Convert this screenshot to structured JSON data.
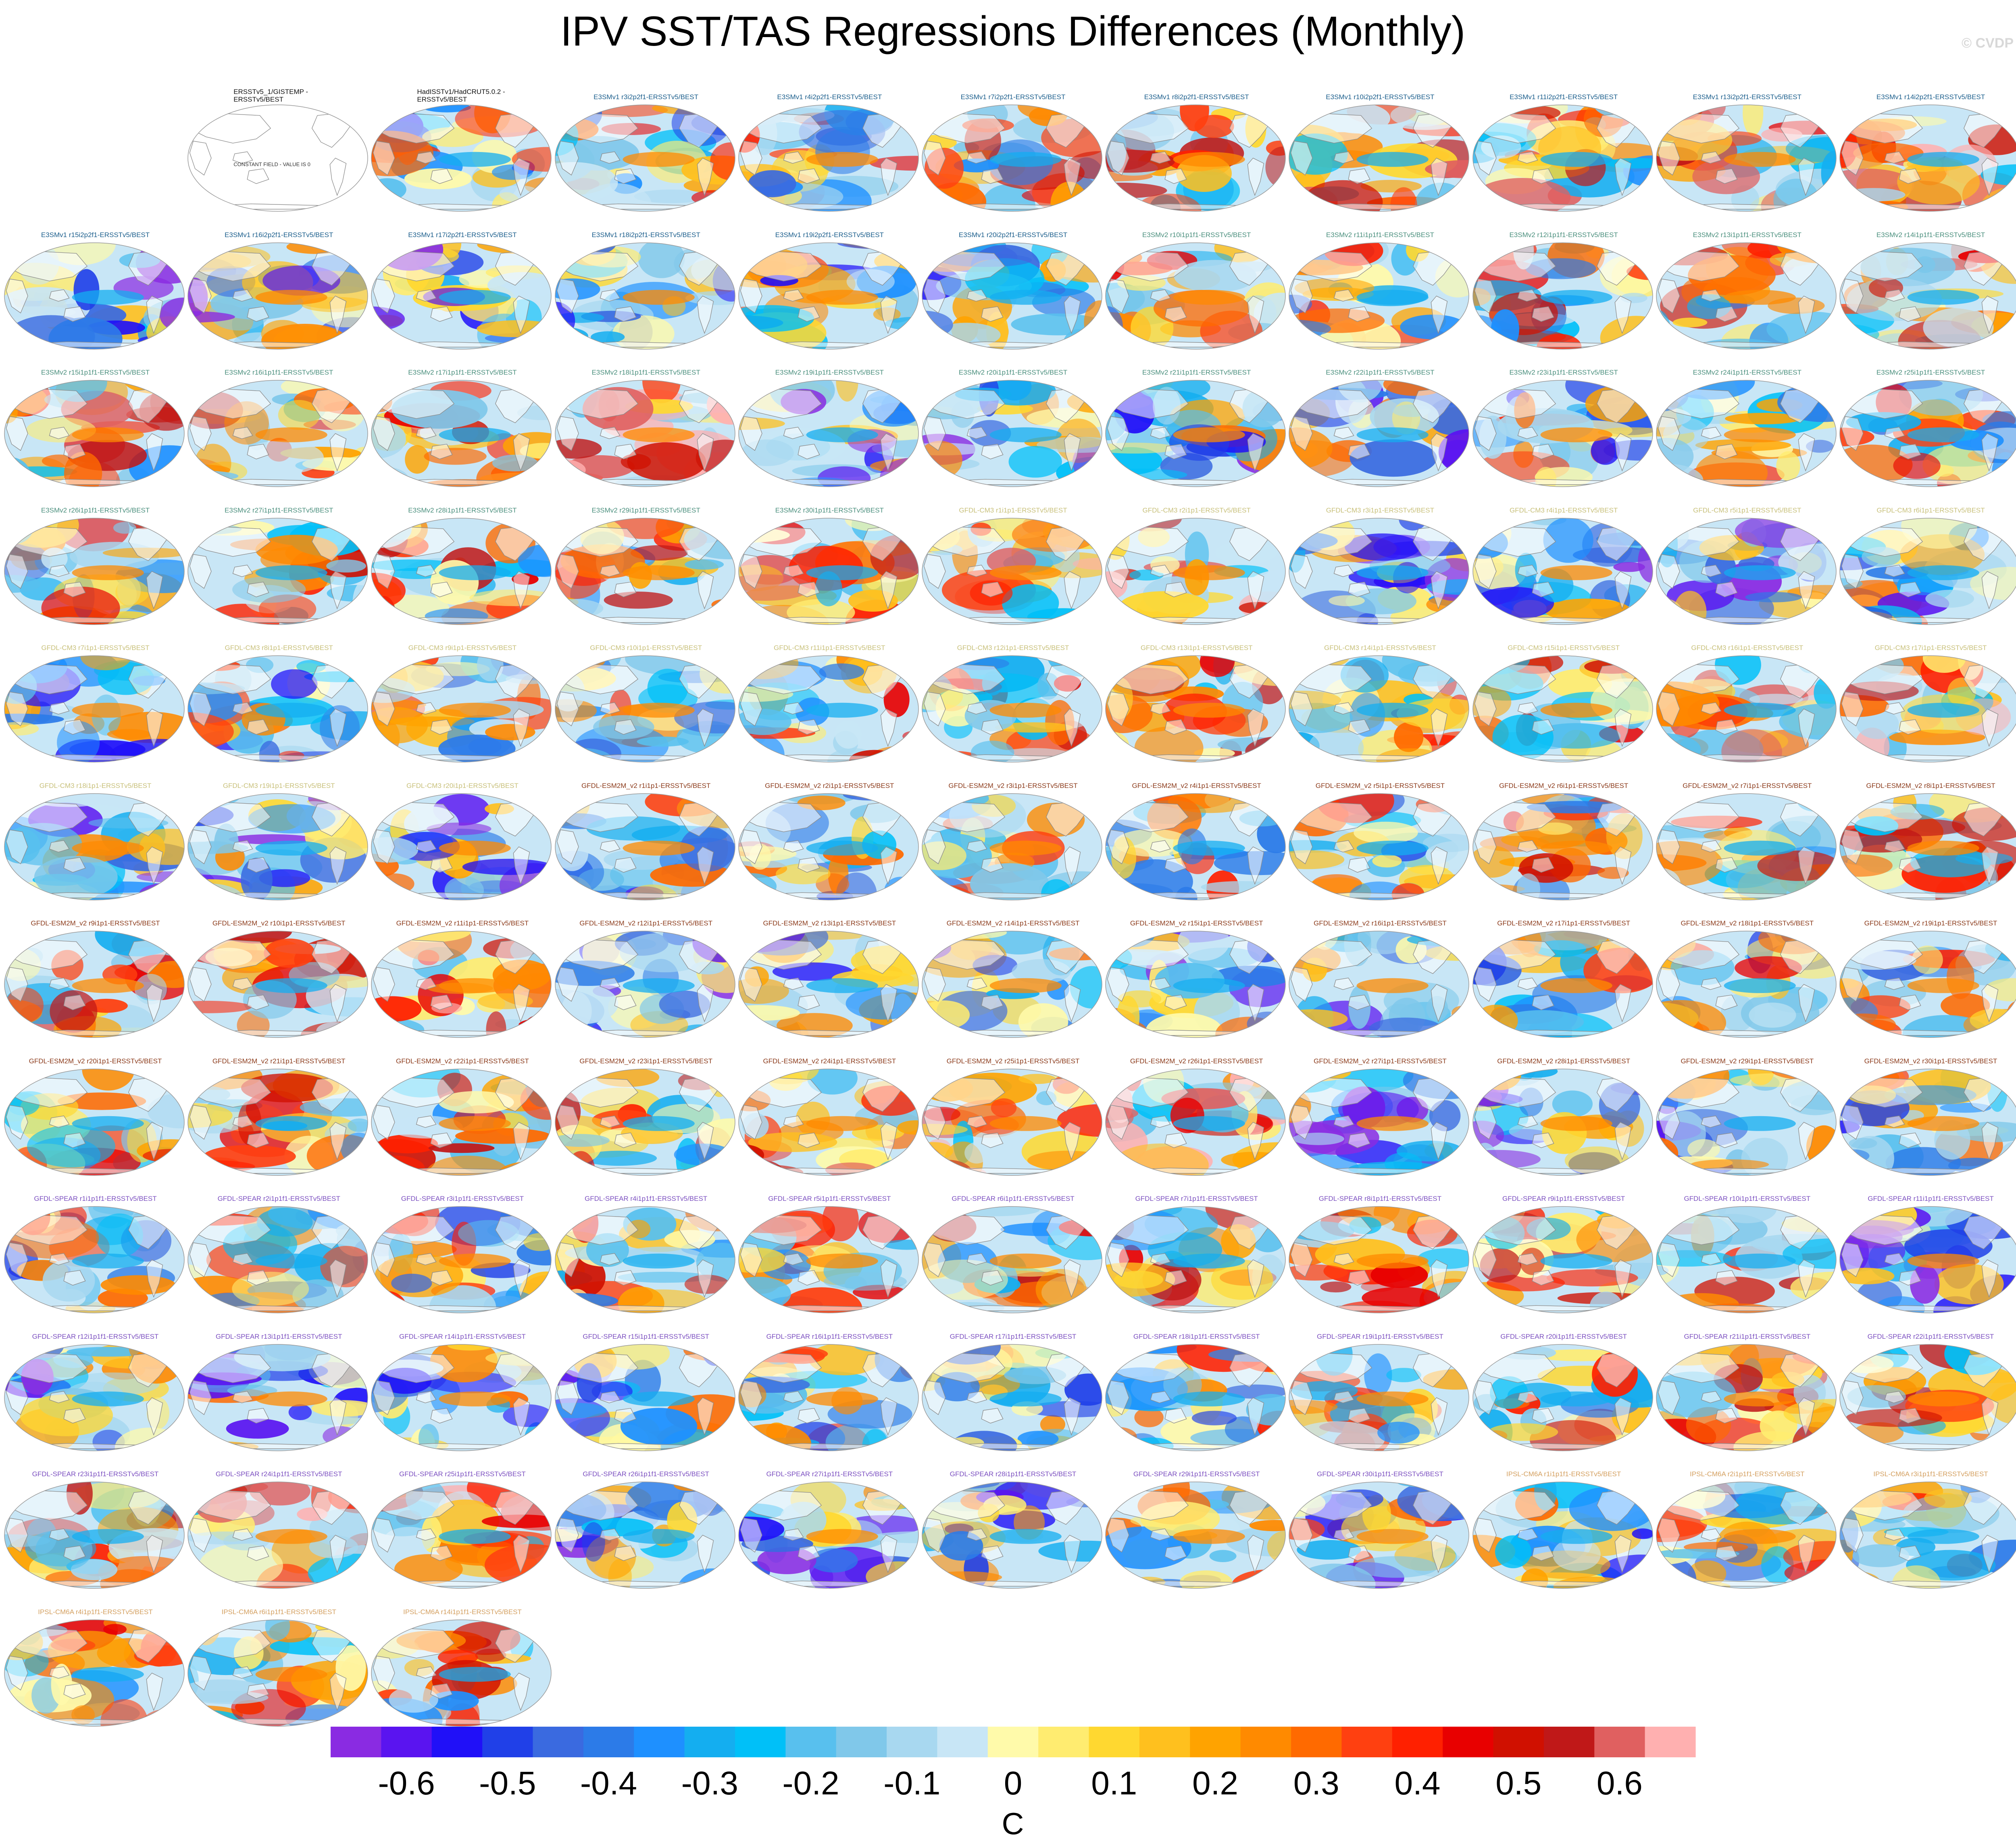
{
  "title": "IPV SST/TAS Regressions Differences (Monthly)",
  "watermark": "© CVDP",
  "colors": {
    "E3SMv1": "#1b5e8c",
    "E3SMv2": "#4a8f7d",
    "GFDL-CM3": "#c8c07a",
    "GFDL-ESM2M_v2": "#8b3a1a",
    "GFDL-SPEAR": "#7b4fc0",
    "IPSL-CM6A": "#d4a060",
    "obs": "#111111"
  },
  "chart_data": {
    "type": "map_panel_grid",
    "title": "IPV SST/TAS Regressions Differences (Monthly)",
    "projection": "robinson-global",
    "variable": "SST/TAS regression difference",
    "units": "C",
    "colorbar": {
      "label": "C",
      "tick_labels": [
        "-0.6",
        "-0.5",
        "-0.4",
        "-0.3",
        "-0.2",
        "-0.1",
        "0",
        "0.1",
        "0.2",
        "0.3",
        "0.4",
        "0.5",
        "0.6"
      ],
      "bins": [
        "#8a2be2",
        "#5a14f0",
        "#2010f8",
        "#2040e8",
        "#3a6ae0",
        "#2c7be8",
        "#1e90ff",
        "#14aef0",
        "#00c0f8",
        "#58c0ee",
        "#80c8ea",
        "#a8d8f0",
        "#c8e6f6",
        "#fffaaa",
        "#ffec70",
        "#ffd830",
        "#ffc01e",
        "#ffa300",
        "#ff8a00",
        "#ff6a00",
        "#ff4010",
        "#ff2000",
        "#e80000",
        "#d01000",
        "#c01818",
        "#e06060",
        "#ffb0b0"
      ]
    },
    "panels": [
      {
        "title": "",
        "group": "blank"
      },
      {
        "title": "ERSSTv5_1/GISTEMP -\nERSSTv5/BEST",
        "group": "obs",
        "constant": true,
        "constant_label": "CONSTANT FIELD - VALUE IS 0"
      },
      {
        "title": "HadISSTv1/HadCRUT5.0.2 -\nERSSTv5/BEST",
        "group": "obs"
      },
      {
        "title": "E3SMv1 r3i2p2f1-ERSSTv5/BEST",
        "group": "E3SMv1"
      },
      {
        "title": "E3SMv1 r4i2p2f1-ERSSTv5/BEST",
        "group": "E3SMv1"
      },
      {
        "title": "E3SMv1 r7i2p2f1-ERSSTv5/BEST",
        "group": "E3SMv1"
      },
      {
        "title": "E3SMv1 r8i2p2f1-ERSSTv5/BEST",
        "group": "E3SMv1"
      },
      {
        "title": "E3SMv1 r10i2p2f1-ERSSTv5/BEST",
        "group": "E3SMv1"
      },
      {
        "title": "E3SMv1 r11i2p2f1-ERSSTv5/BEST",
        "group": "E3SMv1"
      },
      {
        "title": "E3SMv1 r13i2p2f1-ERSSTv5/BEST",
        "group": "E3SMv1"
      },
      {
        "title": "E3SMv1 r14i2p2f1-ERSSTv5/BEST",
        "group": "E3SMv1"
      },
      {
        "title": "E3SMv1 r15i2p2f1-ERSSTv5/BEST",
        "group": "E3SMv1"
      },
      {
        "title": "E3SMv1 r16i2p2f1-ERSSTv5/BEST",
        "group": "E3SMv1"
      },
      {
        "title": "E3SMv1 r17i2p2f1-ERSSTv5/BEST",
        "group": "E3SMv1"
      },
      {
        "title": "E3SMv1 r18i2p2f1-ERSSTv5/BEST",
        "group": "E3SMv1"
      },
      {
        "title": "E3SMv1 r19i2p2f1-ERSSTv5/BEST",
        "group": "E3SMv1"
      },
      {
        "title": "E3SMv1 r20i2p2f1-ERSSTv5/BEST",
        "group": "E3SMv1"
      },
      {
        "title": "E3SMv2 r10i1p1f1-ERSSTv5/BEST",
        "group": "E3SMv2"
      },
      {
        "title": "E3SMv2 r11i1p1f1-ERSSTv5/BEST",
        "group": "E3SMv2"
      },
      {
        "title": "E3SMv2 r12i1p1f1-ERSSTv5/BEST",
        "group": "E3SMv2"
      },
      {
        "title": "E3SMv2 r13i1p1f1-ERSSTv5/BEST",
        "group": "E3SMv2"
      },
      {
        "title": "E3SMv2 r14i1p1f1-ERSSTv5/BEST",
        "group": "E3SMv2"
      },
      {
        "title": "E3SMv2 r15i1p1f1-ERSSTv5/BEST",
        "group": "E3SMv2"
      },
      {
        "title": "E3SMv2 r16i1p1f1-ERSSTv5/BEST",
        "group": "E3SMv2"
      },
      {
        "title": "E3SMv2 r17i1p1f1-ERSSTv5/BEST",
        "group": "E3SMv2"
      },
      {
        "title": "E3SMv2 r18i1p1f1-ERSSTv5/BEST",
        "group": "E3SMv2"
      },
      {
        "title": "E3SMv2 r19i1p1f1-ERSSTv5/BEST",
        "group": "E3SMv2"
      },
      {
        "title": "E3SMv2 r20i1p1f1-ERSSTv5/BEST",
        "group": "E3SMv2"
      },
      {
        "title": "E3SMv2 r21i1p1f1-ERSSTv5/BEST",
        "group": "E3SMv2"
      },
      {
        "title": "E3SMv2 r22i1p1f1-ERSSTv5/BEST",
        "group": "E3SMv2"
      },
      {
        "title": "E3SMv2 r23i1p1f1-ERSSTv5/BEST",
        "group": "E3SMv2"
      },
      {
        "title": "E3SMv2 r24i1p1f1-ERSSTv5/BEST",
        "group": "E3SMv2"
      },
      {
        "title": "E3SMv2 r25i1p1f1-ERSSTv5/BEST",
        "group": "E3SMv2"
      },
      {
        "title": "E3SMv2 r26i1p1f1-ERSSTv5/BEST",
        "group": "E3SMv2"
      },
      {
        "title": "E3SMv2 r27i1p1f1-ERSSTv5/BEST",
        "group": "E3SMv2"
      },
      {
        "title": "E3SMv2 r28i1p1f1-ERSSTv5/BEST",
        "group": "E3SMv2"
      },
      {
        "title": "E3SMv2 r29i1p1f1-ERSSTv5/BEST",
        "group": "E3SMv2"
      },
      {
        "title": "E3SMv2 r30i1p1f1-ERSSTv5/BEST",
        "group": "E3SMv2"
      },
      {
        "title": "GFDL-CM3 r1i1p1-ERSSTv5/BEST",
        "group": "GFDL-CM3"
      },
      {
        "title": "GFDL-CM3 r2i1p1-ERSSTv5/BEST",
        "group": "GFDL-CM3"
      },
      {
        "title": "GFDL-CM3 r3i1p1-ERSSTv5/BEST",
        "group": "GFDL-CM3"
      },
      {
        "title": "GFDL-CM3 r4i1p1-ERSSTv5/BEST",
        "group": "GFDL-CM3"
      },
      {
        "title": "GFDL-CM3 r5i1p1-ERSSTv5/BEST",
        "group": "GFDL-CM3"
      },
      {
        "title": "GFDL-CM3 r6i1p1-ERSSTv5/BEST",
        "group": "GFDL-CM3"
      },
      {
        "title": "GFDL-CM3 r7i1p1-ERSSTv5/BEST",
        "group": "GFDL-CM3"
      },
      {
        "title": "GFDL-CM3 r8i1p1-ERSSTv5/BEST",
        "group": "GFDL-CM3"
      },
      {
        "title": "GFDL-CM3 r9i1p1-ERSSTv5/BEST",
        "group": "GFDL-CM3"
      },
      {
        "title": "GFDL-CM3 r10i1p1-ERSSTv5/BEST",
        "group": "GFDL-CM3"
      },
      {
        "title": "GFDL-CM3 r11i1p1-ERSSTv5/BEST",
        "group": "GFDL-CM3"
      },
      {
        "title": "GFDL-CM3 r12i1p1-ERSSTv5/BEST",
        "group": "GFDL-CM3"
      },
      {
        "title": "GFDL-CM3 r13i1p1-ERSSTv5/BEST",
        "group": "GFDL-CM3"
      },
      {
        "title": "GFDL-CM3 r14i1p1-ERSSTv5/BEST",
        "group": "GFDL-CM3"
      },
      {
        "title": "GFDL-CM3 r15i1p1-ERSSTv5/BEST",
        "group": "GFDL-CM3"
      },
      {
        "title": "GFDL-CM3 r16i1p1-ERSSTv5/BEST",
        "group": "GFDL-CM3"
      },
      {
        "title": "GFDL-CM3 r17i1p1-ERSSTv5/BEST",
        "group": "GFDL-CM3"
      },
      {
        "title": "GFDL-CM3 r18i1p1-ERSSTv5/BEST",
        "group": "GFDL-CM3"
      },
      {
        "title": "GFDL-CM3 r19i1p1-ERSSTv5/BEST",
        "group": "GFDL-CM3"
      },
      {
        "title": "GFDL-CM3 r20i1p1-ERSSTv5/BEST",
        "group": "GFDL-CM3"
      },
      {
        "title": "GFDL-ESM2M_v2 r1i1p1-ERSSTv5/BEST",
        "group": "GFDL-ESM2M_v2"
      },
      {
        "title": "GFDL-ESM2M_v2 r2i1p1-ERSSTv5/BEST",
        "group": "GFDL-ESM2M_v2"
      },
      {
        "title": "GFDL-ESM2M_v2 r3i1p1-ERSSTv5/BEST",
        "group": "GFDL-ESM2M_v2"
      },
      {
        "title": "GFDL-ESM2M_v2 r4i1p1-ERSSTv5/BEST",
        "group": "GFDL-ESM2M_v2"
      },
      {
        "title": "GFDL-ESM2M_v2 r5i1p1-ERSSTv5/BEST",
        "group": "GFDL-ESM2M_v2"
      },
      {
        "title": "GFDL-ESM2M_v2 r6i1p1-ERSSTv5/BEST",
        "group": "GFDL-ESM2M_v2"
      },
      {
        "title": "GFDL-ESM2M_v2 r7i1p1-ERSSTv5/BEST",
        "group": "GFDL-ESM2M_v2"
      },
      {
        "title": "GFDL-ESM2M_v2 r8i1p1-ERSSTv5/BEST",
        "group": "GFDL-ESM2M_v2"
      },
      {
        "title": "GFDL-ESM2M_v2 r9i1p1-ERSSTv5/BEST",
        "group": "GFDL-ESM2M_v2"
      },
      {
        "title": "GFDL-ESM2M_v2 r10i1p1-ERSSTv5/BEST",
        "group": "GFDL-ESM2M_v2"
      },
      {
        "title": "GFDL-ESM2M_v2 r11i1p1-ERSSTv5/BEST",
        "group": "GFDL-ESM2M_v2"
      },
      {
        "title": "GFDL-ESM2M_v2 r12i1p1-ERSSTv5/BEST",
        "group": "GFDL-ESM2M_v2"
      },
      {
        "title": "GFDL-ESM2M_v2 r13i1p1-ERSSTv5/BEST",
        "group": "GFDL-ESM2M_v2"
      },
      {
        "title": "GFDL-ESM2M_v2 r14i1p1-ERSSTv5/BEST",
        "group": "GFDL-ESM2M_v2"
      },
      {
        "title": "GFDL-ESM2M_v2 r15i1p1-ERSSTv5/BEST",
        "group": "GFDL-ESM2M_v2"
      },
      {
        "title": "GFDL-ESM2M_v2 r16i1p1-ERSSTv5/BEST",
        "group": "GFDL-ESM2M_v2"
      },
      {
        "title": "GFDL-ESM2M_v2 r17i1p1-ERSSTv5/BEST",
        "group": "GFDL-ESM2M_v2"
      },
      {
        "title": "GFDL-ESM2M_v2 r18i1p1-ERSSTv5/BEST",
        "group": "GFDL-ESM2M_v2"
      },
      {
        "title": "GFDL-ESM2M_v2 r19i1p1-ERSSTv5/BEST",
        "group": "GFDL-ESM2M_v2"
      },
      {
        "title": "GFDL-ESM2M_v2 r20i1p1-ERSSTv5/BEST",
        "group": "GFDL-ESM2M_v2"
      },
      {
        "title": "GFDL-ESM2M_v2 r21i1p1-ERSSTv5/BEST",
        "group": "GFDL-ESM2M_v2"
      },
      {
        "title": "GFDL-ESM2M_v2 r22i1p1-ERSSTv5/BEST",
        "group": "GFDL-ESM2M_v2"
      },
      {
        "title": "GFDL-ESM2M_v2 r23i1p1-ERSSTv5/BEST",
        "group": "GFDL-ESM2M_v2"
      },
      {
        "title": "GFDL-ESM2M_v2 r24i1p1-ERSSTv5/BEST",
        "group": "GFDL-ESM2M_v2"
      },
      {
        "title": "GFDL-ESM2M_v2 r25i1p1-ERSSTv5/BEST",
        "group": "GFDL-ESM2M_v2"
      },
      {
        "title": "GFDL-ESM2M_v2 r26i1p1-ERSSTv5/BEST",
        "group": "GFDL-ESM2M_v2"
      },
      {
        "title": "GFDL-ESM2M_v2 r27i1p1-ERSSTv5/BEST",
        "group": "GFDL-ESM2M_v2"
      },
      {
        "title": "GFDL-ESM2M_v2 r28i1p1-ERSSTv5/BEST",
        "group": "GFDL-ESM2M_v2"
      },
      {
        "title": "GFDL-ESM2M_v2 r29i1p1-ERSSTv5/BEST",
        "group": "GFDL-ESM2M_v2"
      },
      {
        "title": "GFDL-ESM2M_v2 r30i1p1-ERSSTv5/BEST",
        "group": "GFDL-ESM2M_v2"
      },
      {
        "title": "GFDL-SPEAR r1i1p1f1-ERSSTv5/BEST",
        "group": "GFDL-SPEAR"
      },
      {
        "title": "GFDL-SPEAR r2i1p1f1-ERSSTv5/BEST",
        "group": "GFDL-SPEAR"
      },
      {
        "title": "GFDL-SPEAR r3i1p1f1-ERSSTv5/BEST",
        "group": "GFDL-SPEAR"
      },
      {
        "title": "GFDL-SPEAR r4i1p1f1-ERSSTv5/BEST",
        "group": "GFDL-SPEAR"
      },
      {
        "title": "GFDL-SPEAR r5i1p1f1-ERSSTv5/BEST",
        "group": "GFDL-SPEAR"
      },
      {
        "title": "GFDL-SPEAR r6i1p1f1-ERSSTv5/BEST",
        "group": "GFDL-SPEAR"
      },
      {
        "title": "GFDL-SPEAR r7i1p1f1-ERSSTv5/BEST",
        "group": "GFDL-SPEAR"
      },
      {
        "title": "GFDL-SPEAR r8i1p1f1-ERSSTv5/BEST",
        "group": "GFDL-SPEAR"
      },
      {
        "title": "GFDL-SPEAR r9i1p1f1-ERSSTv5/BEST",
        "group": "GFDL-SPEAR"
      },
      {
        "title": "GFDL-SPEAR r10i1p1f1-ERSSTv5/BEST",
        "group": "GFDL-SPEAR"
      },
      {
        "title": "GFDL-SPEAR r11i1p1f1-ERSSTv5/BEST",
        "group": "GFDL-SPEAR"
      },
      {
        "title": "GFDL-SPEAR r12i1p1f1-ERSSTv5/BEST",
        "group": "GFDL-SPEAR"
      },
      {
        "title": "GFDL-SPEAR r13i1p1f1-ERSSTv5/BEST",
        "group": "GFDL-SPEAR"
      },
      {
        "title": "GFDL-SPEAR r14i1p1f1-ERSSTv5/BEST",
        "group": "GFDL-SPEAR"
      },
      {
        "title": "GFDL-SPEAR r15i1p1f1-ERSSTv5/BEST",
        "group": "GFDL-SPEAR"
      },
      {
        "title": "GFDL-SPEAR r16i1p1f1-ERSSTv5/BEST",
        "group": "GFDL-SPEAR"
      },
      {
        "title": "GFDL-SPEAR r17i1p1f1-ERSSTv5/BEST",
        "group": "GFDL-SPEAR"
      },
      {
        "title": "GFDL-SPEAR r18i1p1f1-ERSSTv5/BEST",
        "group": "GFDL-SPEAR"
      },
      {
        "title": "GFDL-SPEAR r19i1p1f1-ERSSTv5/BEST",
        "group": "GFDL-SPEAR"
      },
      {
        "title": "GFDL-SPEAR r20i1p1f1-ERSSTv5/BEST",
        "group": "GFDL-SPEAR"
      },
      {
        "title": "GFDL-SPEAR r21i1p1f1-ERSSTv5/BEST",
        "group": "GFDL-SPEAR"
      },
      {
        "title": "GFDL-SPEAR r22i1p1f1-ERSSTv5/BEST",
        "group": "GFDL-SPEAR"
      },
      {
        "title": "GFDL-SPEAR r23i1p1f1-ERSSTv5/BEST",
        "group": "GFDL-SPEAR"
      },
      {
        "title": "GFDL-SPEAR r24i1p1f1-ERSSTv5/BEST",
        "group": "GFDL-SPEAR"
      },
      {
        "title": "GFDL-SPEAR r25i1p1f1-ERSSTv5/BEST",
        "group": "GFDL-SPEAR"
      },
      {
        "title": "GFDL-SPEAR r26i1p1f1-ERSSTv5/BEST",
        "group": "GFDL-SPEAR"
      },
      {
        "title": "GFDL-SPEAR r27i1p1f1-ERSSTv5/BEST",
        "group": "GFDL-SPEAR"
      },
      {
        "title": "GFDL-SPEAR r28i1p1f1-ERSSTv5/BEST",
        "group": "GFDL-SPEAR"
      },
      {
        "title": "GFDL-SPEAR r29i1p1f1-ERSSTv5/BEST",
        "group": "GFDL-SPEAR"
      },
      {
        "title": "GFDL-SPEAR r30i1p1f1-ERSSTv5/BEST",
        "group": "GFDL-SPEAR"
      },
      {
        "title": "IPSL-CM6A r1i1p1f1-ERSSTv5/BEST",
        "group": "IPSL-CM6A"
      },
      {
        "title": "IPSL-CM6A r2i1p1f1-ERSSTv5/BEST",
        "group": "IPSL-CM6A"
      },
      {
        "title": "IPSL-CM6A r3i1p1f1-ERSSTv5/BEST",
        "group": "IPSL-CM6A"
      },
      {
        "title": "IPSL-CM6A r4i1p1f1-ERSSTv5/BEST",
        "group": "IPSL-CM6A"
      },
      {
        "title": "IPSL-CM6A r6i1p1f1-ERSSTv5/BEST",
        "group": "IPSL-CM6A"
      },
      {
        "title": "IPSL-CM6A r14i1p1f1-ERSSTv5/BEST",
        "group": "IPSL-CM6A"
      }
    ]
  }
}
